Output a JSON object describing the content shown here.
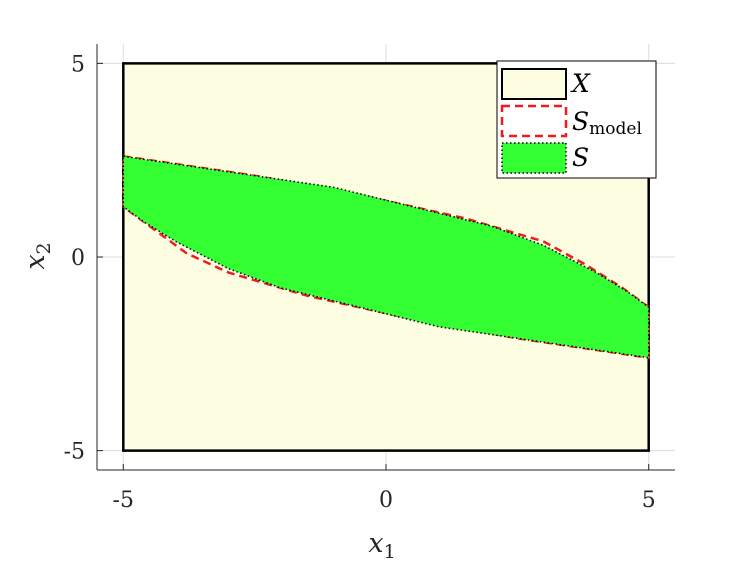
{
  "chart_data": {
    "type": "area",
    "xlabel": {
      "main": "x",
      "sub": "1"
    },
    "ylabel": {
      "main": "x",
      "sub": "2"
    },
    "xlim": [
      -5.5,
      5.5
    ],
    "ylim": [
      -5.5,
      5.5
    ],
    "x_ticks": [
      {
        "value": -5,
        "label": "-5"
      },
      {
        "value": 0,
        "label": "0"
      },
      {
        "value": 5,
        "label": "5"
      }
    ],
    "y_ticks": [
      {
        "value": -5,
        "label": "-5"
      },
      {
        "value": 0,
        "label": "0"
      },
      {
        "value": 5,
        "label": "5"
      }
    ],
    "grid": true,
    "legend_position": "top-right",
    "regions": [
      {
        "id": "X",
        "legend": {
          "main": "X",
          "sub": ""
        },
        "fill": "#fdfde2",
        "stroke": "#000000",
        "stroke_style": "solid",
        "points": [
          [
            -5,
            -5
          ],
          [
            5,
            -5
          ],
          [
            5,
            5
          ],
          [
            -5,
            5
          ]
        ]
      },
      {
        "id": "S_model",
        "legend": {
          "main": "S",
          "sub": "model"
        },
        "fill": "none",
        "stroke": "#ee1c1c",
        "stroke_style": "dashed",
        "points": [
          [
            -5,
            2.6
          ],
          [
            -2.5,
            2.1
          ],
          [
            -0.5,
            1.6
          ],
          [
            1.5,
            1.0
          ],
          [
            3.0,
            0.4
          ],
          [
            3.8,
            -0.2
          ],
          [
            4.5,
            -0.8
          ],
          [
            5,
            -1.3
          ],
          [
            5,
            -2.6
          ],
          [
            2.5,
            -2.1
          ],
          [
            0.5,
            -1.6
          ],
          [
            -1.5,
            -1.0
          ],
          [
            -3.0,
            -0.4
          ],
          [
            -3.8,
            0.1
          ],
          [
            -4.5,
            0.8
          ],
          [
            -5,
            1.3
          ]
        ]
      },
      {
        "id": "S",
        "legend": {
          "main": "S",
          "sub": ""
        },
        "fill": "#33ff33",
        "stroke": "#000000",
        "stroke_style": "dotted",
        "points": [
          [
            -5,
            2.6
          ],
          [
            -2.5,
            2.1
          ],
          [
            -1.0,
            1.8
          ],
          [
            0.5,
            1.3
          ],
          [
            2.0,
            0.8
          ],
          [
            3.0,
            0.3
          ],
          [
            4.0,
            -0.4
          ],
          [
            4.6,
            -0.9
          ],
          [
            5,
            -1.3
          ],
          [
            5,
            -2.6
          ],
          [
            2.5,
            -2.1
          ],
          [
            1.0,
            -1.8
          ],
          [
            -0.5,
            -1.3
          ],
          [
            -2.0,
            -0.8
          ],
          [
            -3.0,
            -0.3
          ],
          [
            -4.0,
            0.4
          ],
          [
            -4.6,
            0.9
          ],
          [
            -5,
            1.3
          ]
        ]
      }
    ]
  }
}
